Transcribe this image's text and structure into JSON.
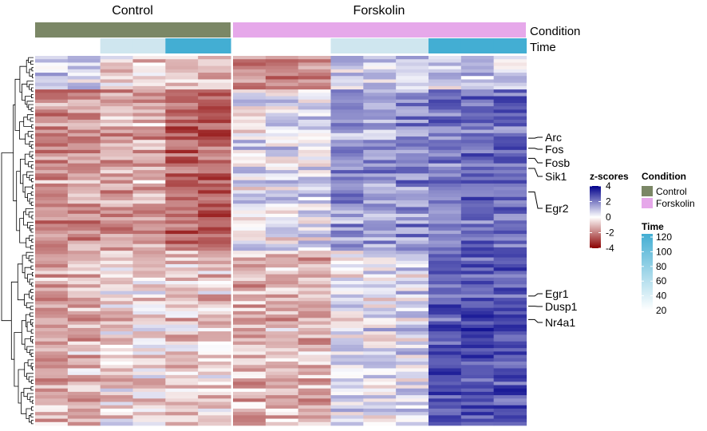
{
  "chart_data": {
    "type": "heatmap",
    "column_groups": [
      {
        "name": "Control",
        "columns": 6
      },
      {
        "name": "Forskolin",
        "columns": 9
      }
    ],
    "annotation_rows": [
      "Condition",
      "Time"
    ],
    "time_per_column": [
      20,
      20,
      40,
      40,
      120,
      120,
      20,
      20,
      20,
      40,
      40,
      40,
      120,
      120,
      120
    ],
    "n_rows": 110,
    "row_split_index": 58,
    "gene_labels": [
      {
        "label": "Arc",
        "row": 24
      },
      {
        "label": "Fos",
        "row": 27
      },
      {
        "label": "Fosb",
        "row": 30
      },
      {
        "label": "Sik1",
        "row": 33
      },
      {
        "label": "Egr2",
        "row": 40
      },
      {
        "label": "Egr1",
        "row": 71
      },
      {
        "label": "Dusp1",
        "row": 74
      },
      {
        "label": "Nr4a1",
        "row": 78
      }
    ],
    "zscore_legend": {
      "title": "z-scores",
      "ticks": [
        4,
        2,
        0,
        -2,
        -4
      ],
      "low_color": "#8b0000",
      "mid_color": "#ffffff",
      "high_color": "#00008b"
    },
    "condition_legend": {
      "title": "Condition",
      "entries": [
        {
          "label": "Control",
          "color": "#7b8766"
        },
        {
          "label": "Forskolin",
          "color": "#e6a8ea"
        }
      ]
    },
    "time_legend": {
      "title": "Time",
      "ticks": [
        120,
        100,
        80,
        60,
        40,
        20
      ],
      "low_color": "#ffffff",
      "high_color": "#43aed3"
    }
  },
  "header": {
    "control": "Control",
    "forskolin": "Forskolin"
  },
  "annotation_labels": {
    "condition": "Condition",
    "time": "Time"
  },
  "colors": {
    "control": "#7b8766",
    "forskolin": "#e6a8ea",
    "time_low": "#ffffff",
    "time_high": "#43aed3"
  }
}
